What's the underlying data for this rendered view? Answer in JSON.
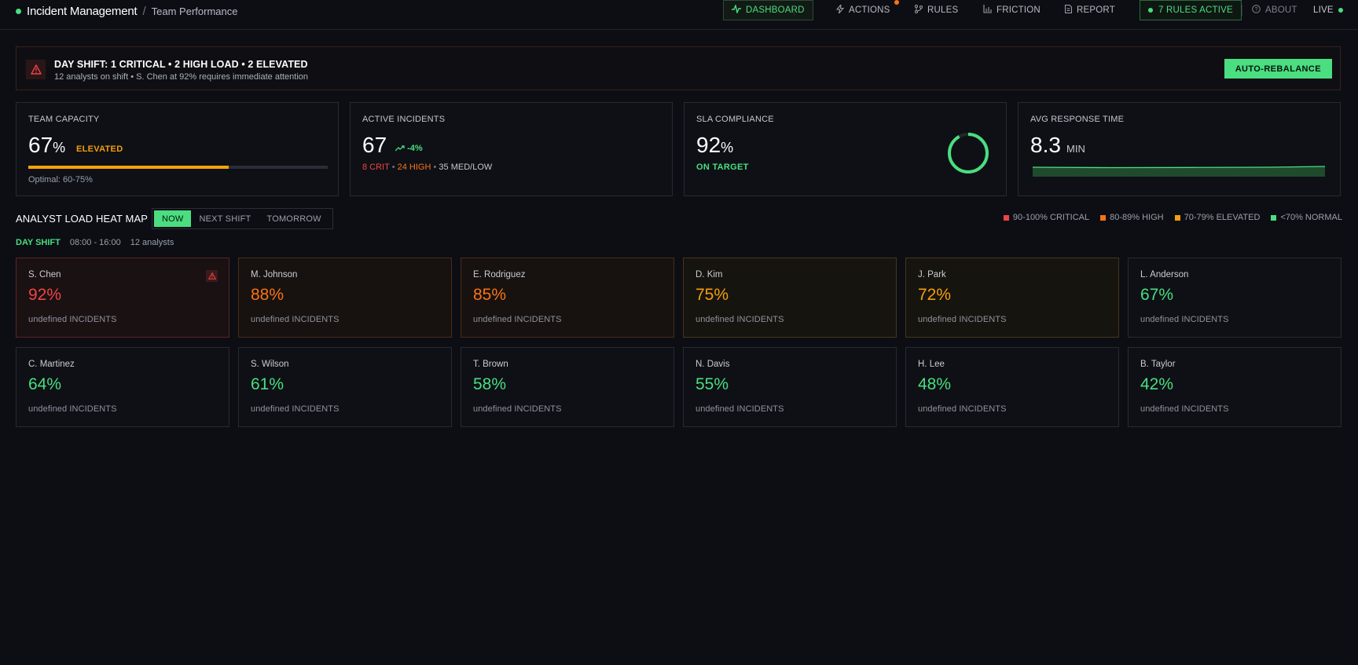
{
  "header": {
    "app_title": "Incident Management",
    "separator": "/",
    "page_title": "Team Performance"
  },
  "nav": {
    "dashboard": "DASHBOARD",
    "actions": "ACTIONS",
    "rules": "RULES",
    "friction": "FRICTION",
    "report": "REPORT",
    "rules_active": "7 RULES ACTIVE",
    "about": "ABOUT",
    "live": "LIVE"
  },
  "alert": {
    "title": "DAY SHIFT: 1 CRITICAL • 2 HIGH LOAD • 2 ELEVATED",
    "subtitle": "12 analysts on shift • S. Chen at 92% requires immediate attention",
    "button": "AUTO-REBALANCE"
  },
  "cards": {
    "capacity": {
      "label": "TEAM CAPACITY",
      "value": "67",
      "unit": "%",
      "status": "ELEVATED",
      "progress": 0.67,
      "optimal": "Optimal: 60-75%"
    },
    "incidents": {
      "label": "ACTIVE INCIDENTS",
      "value": "67",
      "trend": "-4%",
      "crit": "8 CRIT",
      "high": "24 HIGH",
      "medlow": "35 MED/LOW",
      "dot": "•"
    },
    "sla": {
      "label": "SLA COMPLIANCE",
      "value": "92",
      "unit": "%",
      "status": "ON TARGET",
      "progress": 0.92
    },
    "response": {
      "label": "AVG RESPONSE TIME",
      "value": "8.3",
      "unit": "MIN"
    }
  },
  "heatmap": {
    "title": "ANALYST LOAD HEAT MAP",
    "tabs": [
      "NOW",
      "NEXT SHIFT",
      "TOMORROW"
    ],
    "legend": [
      {
        "label": "90-100% CRITICAL",
        "color": "#ef4444"
      },
      {
        "label": "80-89% HIGH",
        "color": "#f97316"
      },
      {
        "label": "70-79% ELEVATED",
        "color": "#f59e0b"
      },
      {
        "label": "<70% NORMAL",
        "color": "#4ade80"
      }
    ],
    "shift": {
      "name": "DAY SHIFT",
      "time": "08:00 - 16:00",
      "count": "12 analysts"
    },
    "analysts": [
      {
        "name": "S. Chen",
        "load": "92%",
        "incidents": "undefined INCIDENTS",
        "level": "critical"
      },
      {
        "name": "M. Johnson",
        "load": "88%",
        "incidents": "undefined INCIDENTS",
        "level": "high"
      },
      {
        "name": "E. Rodriguez",
        "load": "85%",
        "incidents": "undefined INCIDENTS",
        "level": "high"
      },
      {
        "name": "D. Kim",
        "load": "75%",
        "incidents": "undefined INCIDENTS",
        "level": "elevated"
      },
      {
        "name": "J. Park",
        "load": "72%",
        "incidents": "undefined INCIDENTS",
        "level": "elevated"
      },
      {
        "name": "L. Anderson",
        "load": "67%",
        "incidents": "undefined INCIDENTS",
        "level": "normal"
      },
      {
        "name": "C. Martinez",
        "load": "64%",
        "incidents": "undefined INCIDENTS",
        "level": "normal"
      },
      {
        "name": "S. Wilson",
        "load": "61%",
        "incidents": "undefined INCIDENTS",
        "level": "normal"
      },
      {
        "name": "T. Brown",
        "load": "58%",
        "incidents": "undefined INCIDENTS",
        "level": "normal"
      },
      {
        "name": "N. Davis",
        "load": "55%",
        "incidents": "undefined INCIDENTS",
        "level": "normal"
      },
      {
        "name": "H. Lee",
        "load": "48%",
        "incidents": "undefined INCIDENTS",
        "level": "normal"
      },
      {
        "name": "B. Taylor",
        "load": "42%",
        "incidents": "undefined INCIDENTS",
        "level": "normal"
      }
    ]
  },
  "colors": {
    "accent": "#4ade80",
    "critical": "#ef4444",
    "high": "#f97316",
    "elevated": "#f59e0b",
    "background": "#0c0e14"
  }
}
